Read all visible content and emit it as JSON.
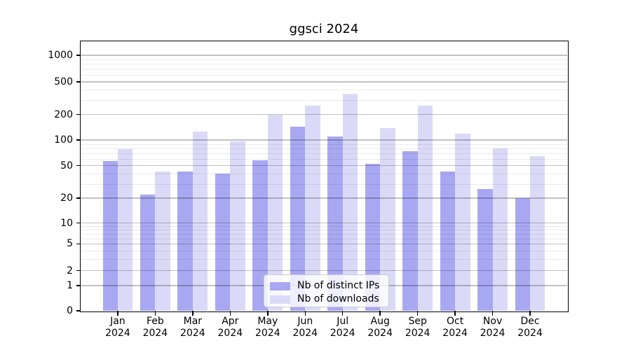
{
  "chart_data": {
    "type": "bar",
    "title": "ggsci 2024",
    "categories": [
      "Jan",
      "Feb",
      "Mar",
      "Apr",
      "May",
      "Jun",
      "Jul",
      "Aug",
      "Sep",
      "Oct",
      "Nov",
      "Dec"
    ],
    "x_tick_second_line": "2024",
    "series": [
      {
        "name": "Nb of distinct IPs",
        "color": "#a8a8f2",
        "values": [
          57,
          22,
          42,
          40,
          58,
          143,
          110,
          53,
          74,
          42,
          26,
          20
        ]
      },
      {
        "name": "Nb of downloads",
        "color": "#dadaf8",
        "values": [
          78,
          42,
          127,
          97,
          200,
          258,
          355,
          139,
          258,
          118,
          80,
          65
        ]
      }
    ],
    "y_ticks": [
      0,
      1,
      2,
      5,
      10,
      20,
      50,
      100,
      200,
      500,
      1000
    ],
    "y_minor_ticks": [
      3,
      4,
      6,
      7,
      8,
      9,
      30,
      40,
      60,
      70,
      80,
      90,
      300,
      400,
      600,
      700,
      800,
      900
    ],
    "y_scale": "log",
    "ylim": [
      0,
      1000
    ],
    "xlabel": "",
    "ylabel": "",
    "grid": "horizontal major and minor gridlines",
    "legend_position": "lower center",
    "colors": {
      "background": "#ffffff",
      "spine": "#000000",
      "grid_major": "rgba(0,0,0,0.24)",
      "grid_minor": "rgba(0,0,0,0.08)",
      "legend_border": "#cccccc"
    }
  }
}
